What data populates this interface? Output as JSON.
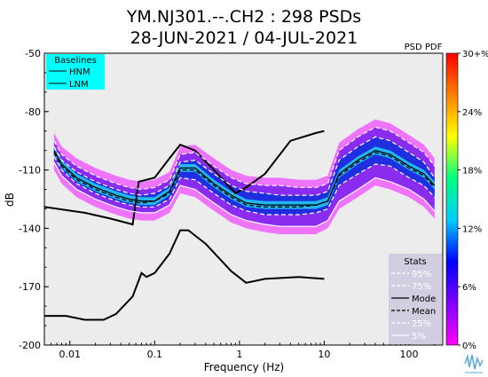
{
  "title_line1": "YM.NJ301.--.CH2 : 298 PSDs",
  "title_line2": "28-JUN-2021 / 04-JUL-2021",
  "corner_label": "PSD PDF",
  "chart_data": {
    "type": "line",
    "xlabel": "Frequency (Hz)",
    "ylabel": "dB",
    "xscale": "log",
    "xlim": [
      0.005,
      250
    ],
    "ylim": [
      -200,
      -50
    ],
    "xticks": [
      {
        "v": 0.01,
        "label": "0.01"
      },
      {
        "v": 0.1,
        "label": "0.1"
      },
      {
        "v": 1,
        "label": "1"
      },
      {
        "v": 10,
        "label": "10"
      },
      {
        "v": 100,
        "label": "100"
      }
    ],
    "yticks": [
      {
        "v": -50,
        "label": "-50"
      },
      {
        "v": -80,
        "label": "-80"
      },
      {
        "v": -110,
        "label": "-110"
      },
      {
        "v": -140,
        "label": "-140"
      },
      {
        "v": -170,
        "label": "-170"
      },
      {
        "v": -200,
        "label": "-200"
      }
    ],
    "grid": false,
    "baselines": {
      "title": "Baselines",
      "hnm": {
        "name": "HNM",
        "x": [
          0.005,
          0.015,
          0.03,
          0.055,
          0.065,
          0.1,
          0.15,
          0.2,
          0.3,
          0.5,
          0.9,
          1.2,
          2,
          4,
          8,
          10
        ],
        "y": [
          -129,
          -132,
          -135,
          -138,
          -116,
          -114,
          -104,
          -97,
          -100,
          -110,
          -122,
          -119,
          -112,
          -95,
          -91,
          -90
        ]
      },
      "lnm": {
        "name": "LNM",
        "x": [
          0.005,
          0.009,
          0.015,
          0.025,
          0.035,
          0.055,
          0.07,
          0.08,
          0.1,
          0.15,
          0.2,
          0.25,
          0.4,
          0.8,
          1.2,
          2,
          5,
          10
        ],
        "y": [
          -185,
          -185,
          -187,
          -187,
          -184,
          -175,
          -163,
          -165,
          -163,
          -153,
          -141,
          -141,
          -148,
          -162,
          -168,
          -166,
          -165,
          -166
        ]
      }
    },
    "stats": {
      "title": "Stats",
      "labels": [
        "95%",
        "75%",
        "Mode",
        "Mean",
        "25%",
        "5%"
      ],
      "x": [
        0.0065,
        0.008,
        0.012,
        0.02,
        0.035,
        0.05,
        0.07,
        0.1,
        0.15,
        0.2,
        0.3,
        0.5,
        0.8,
        1.2,
        2,
        3,
        5,
        8,
        11,
        15,
        25,
        40,
        60,
        100,
        150,
        200
      ],
      "p95": [
        -95,
        -102,
        -108,
        -113,
        -117,
        -119,
        -120,
        -119,
        -115,
        -102,
        -101,
        -108,
        -114,
        -117,
        -118,
        -118,
        -119,
        -119,
        -117,
        -100,
        -93,
        -88,
        -90,
        -96,
        -101,
        -108
      ],
      "p75": [
        -98,
        -105,
        -111,
        -116,
        -120,
        -122,
        -123,
        -122,
        -118,
        -106,
        -105,
        -112,
        -118,
        -121,
        -122,
        -123,
        -123,
        -123,
        -121,
        -105,
        -98,
        -93,
        -95,
        -101,
        -106,
        -114
      ],
      "mode": [
        -100,
        -107,
        -114,
        -119,
        -123,
        -125,
        -126,
        -126,
        -121,
        -109,
        -109,
        -117,
        -123,
        -127,
        -128,
        -128,
        -128,
        -128,
        -126,
        -112,
        -105,
        -100,
        -102,
        -108,
        -112,
        -118
      ],
      "mean": [
        -101,
        -108,
        -115,
        -120,
        -124,
        -126,
        -127,
        -126,
        -122,
        -110,
        -110,
        -118,
        -124,
        -128,
        -129,
        -129,
        -129,
        -128,
        -126,
        -113,
        -106,
        -101,
        -103,
        -109,
        -113,
        -119
      ],
      "p25": [
        -103,
        -110,
        -117,
        -122,
        -126,
        -128,
        -129,
        -129,
        -125,
        -114,
        -115,
        -122,
        -128,
        -131,
        -133,
        -133,
        -133,
        -132,
        -130,
        -118,
        -112,
        -107,
        -108,
        -114,
        -118,
        -124
      ],
      "p5": [
        -106,
        -113,
        -120,
        -125,
        -129,
        -131,
        -132,
        -132,
        -128,
        -118,
        -120,
        -127,
        -133,
        -136,
        -138,
        -139,
        -139,
        -139,
        -136,
        -126,
        -120,
        -114,
        -116,
        -120,
        -125,
        -131
      ]
    },
    "colorbar": {
      "colors": [
        "#ff00ff",
        "#8000ff",
        "#0000ff",
        "#00ccff",
        "#00ff80",
        "#ffff00",
        "#ff8000",
        "#ff0000"
      ],
      "ticks": [
        "30+%",
        "24%",
        "18%",
        "12%",
        "6%",
        "0%"
      ]
    }
  }
}
